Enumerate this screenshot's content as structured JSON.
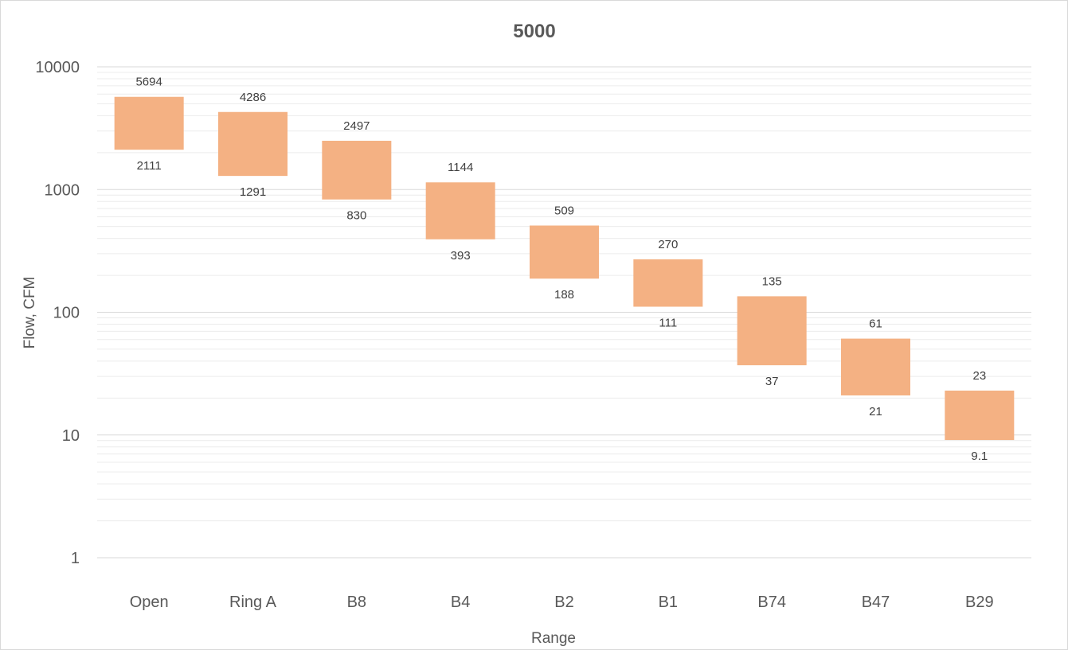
{
  "chart_data": {
    "type": "bar",
    "subtype": "floating-range",
    "title": "5000",
    "xlabel": "Range",
    "ylabel": "Flow, CFM",
    "yscale": "log",
    "ylim": [
      1,
      10000
    ],
    "yticks": [
      "1",
      "10",
      "100",
      "1000",
      "10000"
    ],
    "grid": true,
    "bar_color": "#f4b183",
    "categories": [
      "Open",
      "Ring A",
      "B8",
      "B4",
      "B2",
      "B1",
      "B74",
      "B47",
      "B29"
    ],
    "high": [
      5694,
      4286,
      2497,
      1144,
      509,
      270,
      135,
      61,
      23
    ],
    "low": [
      2111,
      1291,
      830,
      393,
      188,
      111,
      37,
      21,
      9.1
    ],
    "high_labels": [
      "5694",
      "4286",
      "2497",
      "1144",
      "509",
      "270",
      "135",
      "61",
      "23"
    ],
    "low_labels": [
      "2111",
      "1291",
      "830",
      "393",
      "188",
      "111",
      "37",
      "21",
      "9.1"
    ]
  }
}
